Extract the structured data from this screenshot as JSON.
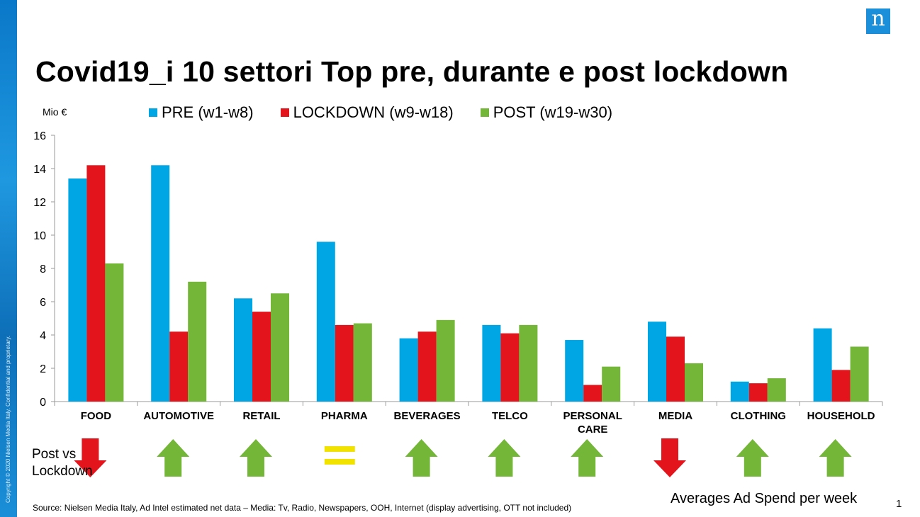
{
  "slide": {
    "title": "Covid19_i 10 settori Top pre, durante e post lockdown",
    "unit": "Mio €",
    "logo": "n",
    "copyright": "Copyright © 2020 Nielsen Media Italy. Confidential and proprietary.",
    "post_vs_line1": "Post vs",
    "post_vs_line2": "Lockdown",
    "caption": "Averages Ad Spend per week",
    "source": "Source: Nielsen Media Italy,  Ad Intel  estimated net data – Media: Tv, Radio, Newspapers, OOH, Internet (display advertising, OTT not included)",
    "page_number": "1"
  },
  "colors": {
    "pre": "#00a6e4",
    "lockdown": "#e3141b",
    "post": "#73b638",
    "equal": "#f2e200",
    "logo": "#1b8fd9"
  },
  "chart_data": {
    "type": "bar",
    "categories": [
      "FOOD",
      "AUTOMOTIVE",
      "RETAIL",
      "PHARMA",
      "BEVERAGES",
      "TELCO",
      "PERSONAL CARE",
      "MEDIA",
      "CLOTHING",
      "HOUSEHOLD"
    ],
    "category_lines": [
      [
        "FOOD"
      ],
      [
        "AUTOMOTIVE"
      ],
      [
        "RETAIL"
      ],
      [
        "PHARMA"
      ],
      [
        "BEVERAGES"
      ],
      [
        "TELCO"
      ],
      [
        "PERSONAL",
        "CARE"
      ],
      [
        "MEDIA"
      ],
      [
        "CLOTHING"
      ],
      [
        "HOUSEHOLD"
      ]
    ],
    "series": [
      {
        "name": "PRE (w1-w8)",
        "color": "#00a6e4",
        "values": [
          13.4,
          14.2,
          6.2,
          9.6,
          3.8,
          4.6,
          3.7,
          4.8,
          1.2,
          4.4
        ]
      },
      {
        "name": "LOCKDOWN  (w9-w18)",
        "color": "#e3141b",
        "values": [
          14.2,
          4.2,
          5.4,
          4.6,
          4.2,
          4.1,
          1.0,
          3.9,
          1.1,
          1.9
        ]
      },
      {
        "name": "POST  (w19-w30)",
        "color": "#73b638",
        "values": [
          8.3,
          7.2,
          6.5,
          4.7,
          4.9,
          4.6,
          2.1,
          2.3,
          1.4,
          3.3
        ]
      }
    ],
    "ylim": [
      0,
      16
    ],
    "yticks": [
      0,
      2,
      4,
      6,
      8,
      10,
      12,
      14,
      16
    ],
    "ylabel": "Mio €",
    "xlabel": "",
    "legend_position": "top",
    "grid": false,
    "post_vs_lockdown": [
      "down",
      "up",
      "up",
      "equal",
      "up",
      "up",
      "up",
      "down",
      "up",
      "up"
    ]
  }
}
